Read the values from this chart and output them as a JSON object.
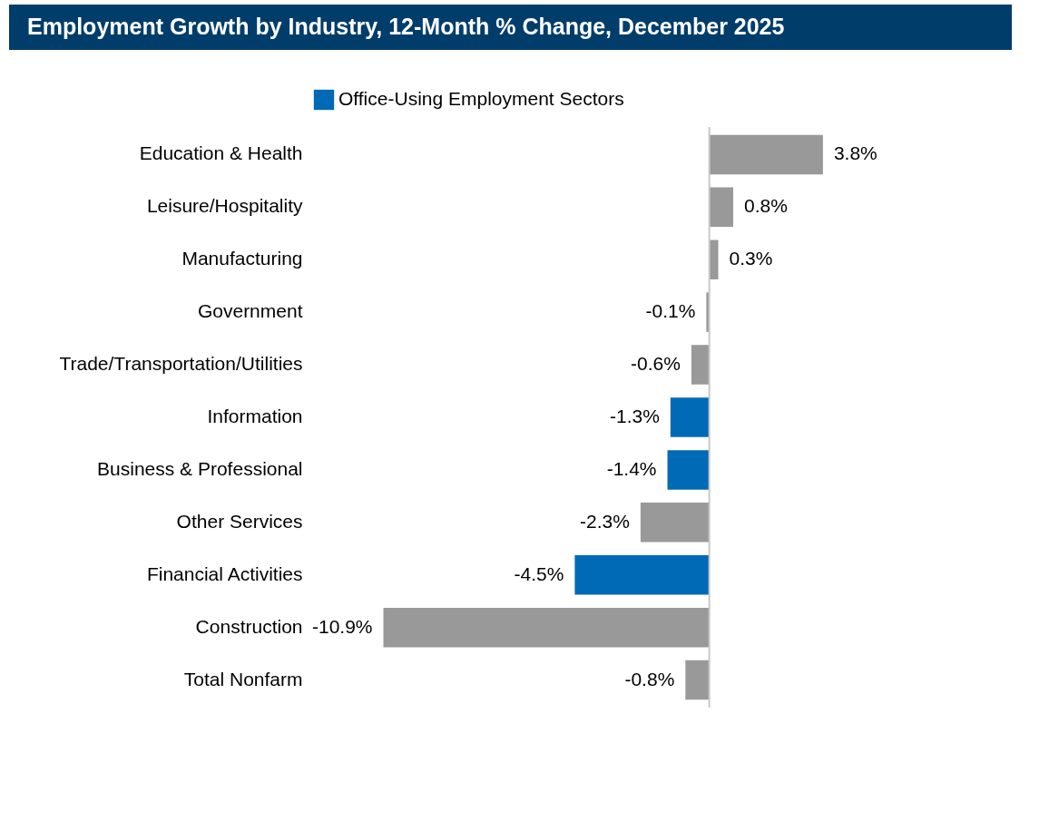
{
  "chart_data": {
    "type": "bar",
    "orientation": "horizontal",
    "title": "Employment Growth by Industry, 12-Month % Change, December 2025",
    "categories": [
      "Education & Health",
      "Leisure/Hospitality",
      "Manufacturing",
      "Government",
      "Trade/Transportation/Utilities",
      "Information",
      "Business & Professional",
      "Other Services",
      "Financial Activities",
      "Construction",
      "Total Nonfarm"
    ],
    "series": [
      {
        "color": "#999999",
        "values": [
          3.8,
          0.8,
          0.3,
          -0.1,
          -0.6,
          null,
          null,
          -2.3,
          null,
          -10.9,
          -0.8
        ],
        "value_labels": [
          "3.8%",
          "0.8%",
          "0.3%",
          "-0.1%",
          "-0.6%",
          null,
          null,
          "-2.3%",
          null,
          "-10.9%",
          "-0.8%"
        ]
      },
      {
        "name": "Office-Using Employment Sectors",
        "color": "#006ab7",
        "values": [
          null,
          null,
          null,
          null,
          null,
          -1.3,
          -1.4,
          null,
          -4.5,
          null,
          null
        ],
        "value_labels": [
          null,
          null,
          null,
          null,
          null,
          "-1.3%",
          "-1.4%",
          null,
          "-4.5%",
          null,
          null
        ]
      }
    ],
    "legend": "top",
    "tick_labels": "y",
    "grid": false
  }
}
